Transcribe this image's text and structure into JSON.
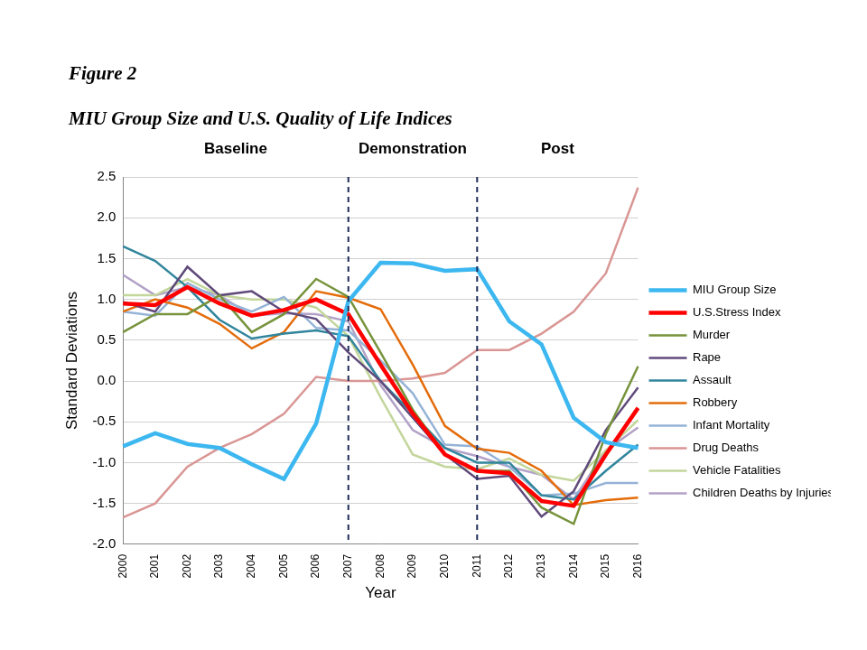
{
  "chart_data": {
    "type": "line",
    "title": "Figure 2",
    "subtitle": "MIU Group Size and U.S. Quality of Life Indices",
    "x_label": "Year",
    "y_label": "Standard Deviations",
    "categories": [
      "2000",
      "2001",
      "2002",
      "2003",
      "2004",
      "2005",
      "2006",
      "2007",
      "2008",
      "2009",
      "2010",
      "2011",
      "2012",
      "2013",
      "2014",
      "2015",
      "2016"
    ],
    "phases": [
      {
        "label": "Baseline",
        "start": "2000",
        "end": "2007"
      },
      {
        "label": "Demonstration",
        "start": "2007",
        "end": "2011"
      },
      {
        "label": "Post",
        "start": "2011",
        "end": "2016"
      }
    ],
    "vertical_lines": [
      "2007",
      "2011"
    ],
    "ylim": [
      -2.0,
      2.5
    ],
    "yticks": [
      {
        "value": -2.0,
        "label": "-2.0"
      },
      {
        "value": -1.5,
        "label": "-1.5"
      },
      {
        "value": -1.0,
        "label": "-1.0"
      },
      {
        "value": -0.5,
        "label": "-0.5"
      },
      {
        "value": 0,
        "label": "0.0"
      },
      {
        "value": 0.5,
        "label": "0.5"
      },
      {
        "value": 1.0,
        "label": "1.0"
      },
      {
        "value": 1.5,
        "label": "1.5"
      },
      {
        "value": 2.0,
        "label": "2.0"
      },
      {
        "value": 2.5,
        "label": "2.5"
      }
    ],
    "grid": "y",
    "legend": "right",
    "series": [
      {
        "name": "MIU Group Size",
        "color": "#3db7f0",
        "line_style": "thick",
        "values": [
          -0.8,
          -0.64,
          -0.77,
          -0.82,
          -1.02,
          -1.2,
          -0.52,
          0.98,
          1.45,
          1.44,
          1.35,
          1.37,
          0.73,
          0.45,
          -0.45,
          -0.75,
          -0.82
        ]
      },
      {
        "name": "U.S.Stress Index",
        "color": "#ff0000",
        "line_style": "thick",
        "values": [
          0.95,
          0.93,
          1.15,
          0.95,
          0.8,
          0.87,
          1.0,
          0.82,
          0.2,
          -0.4,
          -0.9,
          -1.1,
          -1.13,
          -1.47,
          -1.53,
          -0.9,
          -0.33
        ]
      },
      {
        "name": "Murder",
        "color": "#77933c",
        "line_style": "solid",
        "values": [
          0.6,
          0.82,
          0.82,
          1.05,
          0.6,
          0.82,
          1.25,
          1.03,
          0.35,
          -0.35,
          -0.9,
          -1.1,
          -1.1,
          -1.55,
          -1.75,
          -0.65,
          0.18
        ]
      },
      {
        "name": "Rape",
        "color": "#604a7b",
        "line_style": "solid",
        "values": [
          0.97,
          0.85,
          1.4,
          1.05,
          1.1,
          0.85,
          0.76,
          0.35,
          0.0,
          -0.45,
          -0.9,
          -1.2,
          -1.16,
          -1.66,
          -1.35,
          -0.6,
          -0.08
        ]
      },
      {
        "name": "Assault",
        "color": "#31859c",
        "line_style": "solid",
        "values": [
          1.65,
          1.47,
          1.15,
          0.75,
          0.52,
          0.58,
          0.62,
          0.55,
          0.0,
          -0.4,
          -0.82,
          -1.0,
          -1.0,
          -1.4,
          -1.45,
          -1.1,
          -0.78
        ]
      },
      {
        "name": "Robbery",
        "color": "#e46c0a",
        "line_style": "solid",
        "values": [
          0.85,
          1.0,
          0.9,
          0.7,
          0.4,
          0.6,
          1.1,
          1.02,
          0.88,
          0.2,
          -0.55,
          -0.83,
          -0.88,
          -1.1,
          -1.52,
          -1.46,
          -1.43
        ]
      },
      {
        "name": "Infant Mortality",
        "color": "#95b3d7",
        "line_style": "solid",
        "values": [
          0.85,
          0.8,
          1.2,
          1.0,
          0.85,
          1.03,
          0.65,
          0.62,
          0.25,
          -0.15,
          -0.78,
          -0.8,
          -1.05,
          -1.4,
          -1.38,
          -1.25,
          -1.25
        ]
      },
      {
        "name": "Drug Deaths",
        "color": "#d99694",
        "line_style": "solid",
        "values": [
          -1.67,
          -1.5,
          -1.05,
          -0.82,
          -0.65,
          -0.4,
          0.05,
          0.0,
          0.0,
          0.03,
          0.1,
          0.38,
          0.38,
          0.58,
          0.85,
          1.32,
          2.37
        ]
      },
      {
        "name": "Vehicle Fatalities",
        "color": "#c3d69b",
        "line_style": "solid",
        "values": [
          1.05,
          1.05,
          1.25,
          1.05,
          1.0,
          1.0,
          0.9,
          0.55,
          -0.2,
          -0.9,
          -1.05,
          -1.08,
          -0.95,
          -1.15,
          -1.22,
          -0.85,
          -0.48
        ]
      },
      {
        "name": "Children Deaths by Injuries",
        "color": "#b3a2c7",
        "line_style": "solid",
        "values": [
          1.3,
          1.05,
          1.15,
          1.05,
          0.8,
          0.83,
          0.82,
          0.73,
          -0.05,
          -0.6,
          -0.82,
          -0.92,
          -1.05,
          -1.15,
          -1.45,
          -0.85,
          -0.57
        ]
      }
    ]
  }
}
